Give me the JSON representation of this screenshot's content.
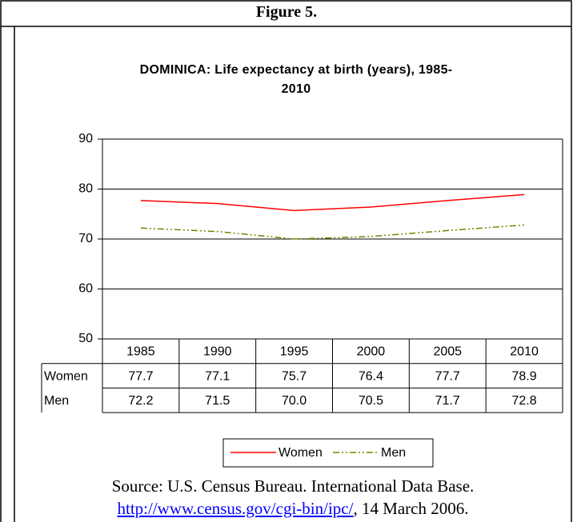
{
  "header": {
    "title": "Figure 5."
  },
  "chart_data": {
    "type": "line",
    "title": "DOMINICA: Life expectancy at birth (years), 1985-2010",
    "categories": [
      "1985",
      "1990",
      "1995",
      "2000",
      "2005",
      "2010"
    ],
    "series": [
      {
        "name": "Women",
        "color": "#ff0000",
        "values": [
          77.7,
          77.1,
          75.7,
          76.4,
          77.7,
          78.9
        ]
      },
      {
        "name": "Men",
        "color": "#808000",
        "values": [
          72.2,
          71.5,
          70.0,
          70.5,
          71.7,
          72.8
        ],
        "value_labels": [
          "72.2",
          "71.5",
          "70.0",
          "70.5",
          "71.7",
          "72.8"
        ]
      }
    ],
    "ylim": [
      50,
      90
    ],
    "yticks": [
      50,
      60,
      70,
      80,
      90
    ],
    "grid": true,
    "legend": "bottom"
  },
  "source": {
    "text": "Source: U.S. Census Bureau. International Data Base.",
    "link": "http://www.census.gov/cgi-bin/ipc/",
    "date": ", 14 March 2006."
  }
}
